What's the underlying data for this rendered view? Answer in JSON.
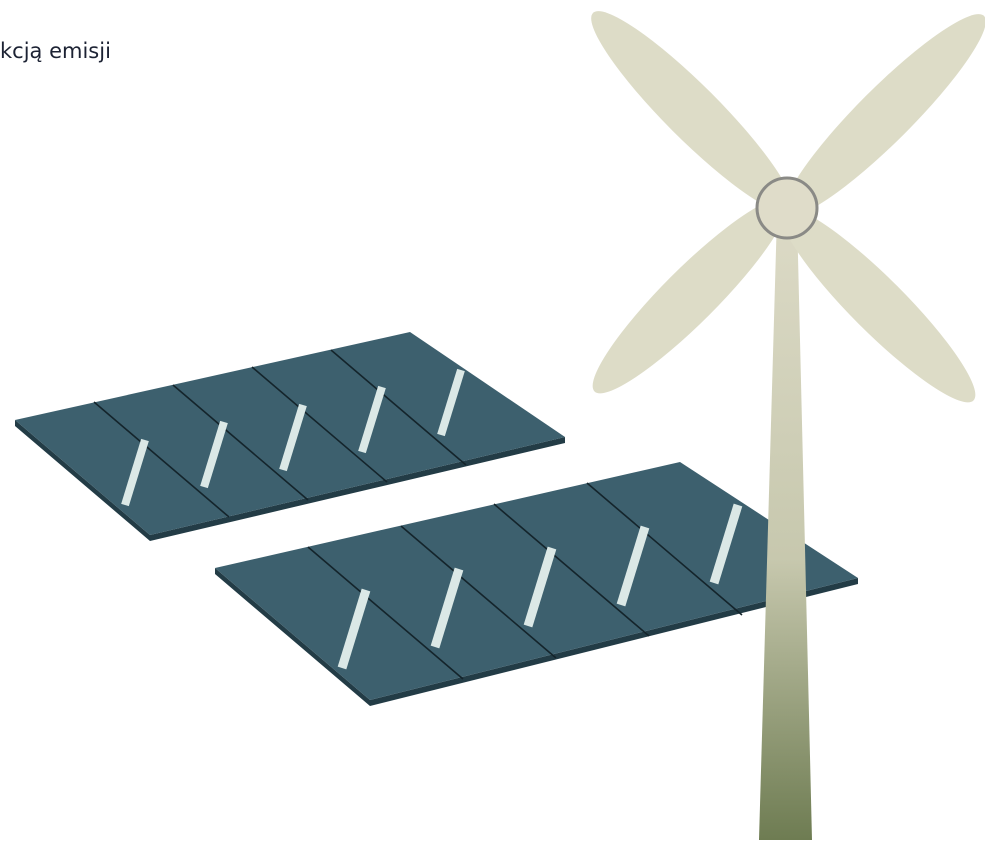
{
  "header": {
    "text": "kcją emisji"
  }
}
